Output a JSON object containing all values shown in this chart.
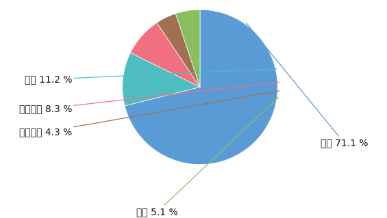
{
  "labels": [
    "出轨",
    "冷战",
    "控制欲强",
    "爱慕虚荣",
    "抠门"
  ],
  "values": [
    71.1,
    11.2,
    8.3,
    4.3,
    5.1
  ],
  "colors": [
    "#5B9BD5",
    "#4DBDC0",
    "#F07080",
    "#A07050",
    "#88C060"
  ],
  "line_colors": [
    "#5B9BD5",
    "#4DBDC0",
    "#F07080",
    "#A07050",
    "#88C060"
  ],
  "label_texts": [
    "出轨 71.1 %",
    "冷战 11.2 %",
    "控制欲强 8.3 %",
    "爱慕虚荣 4.3 %",
    "抠门 5.1 %"
  ],
  "background_color": "#FFFFFF",
  "startangle": 90,
  "figsize": [
    5.65,
    3.19
  ],
  "dpi": 100
}
